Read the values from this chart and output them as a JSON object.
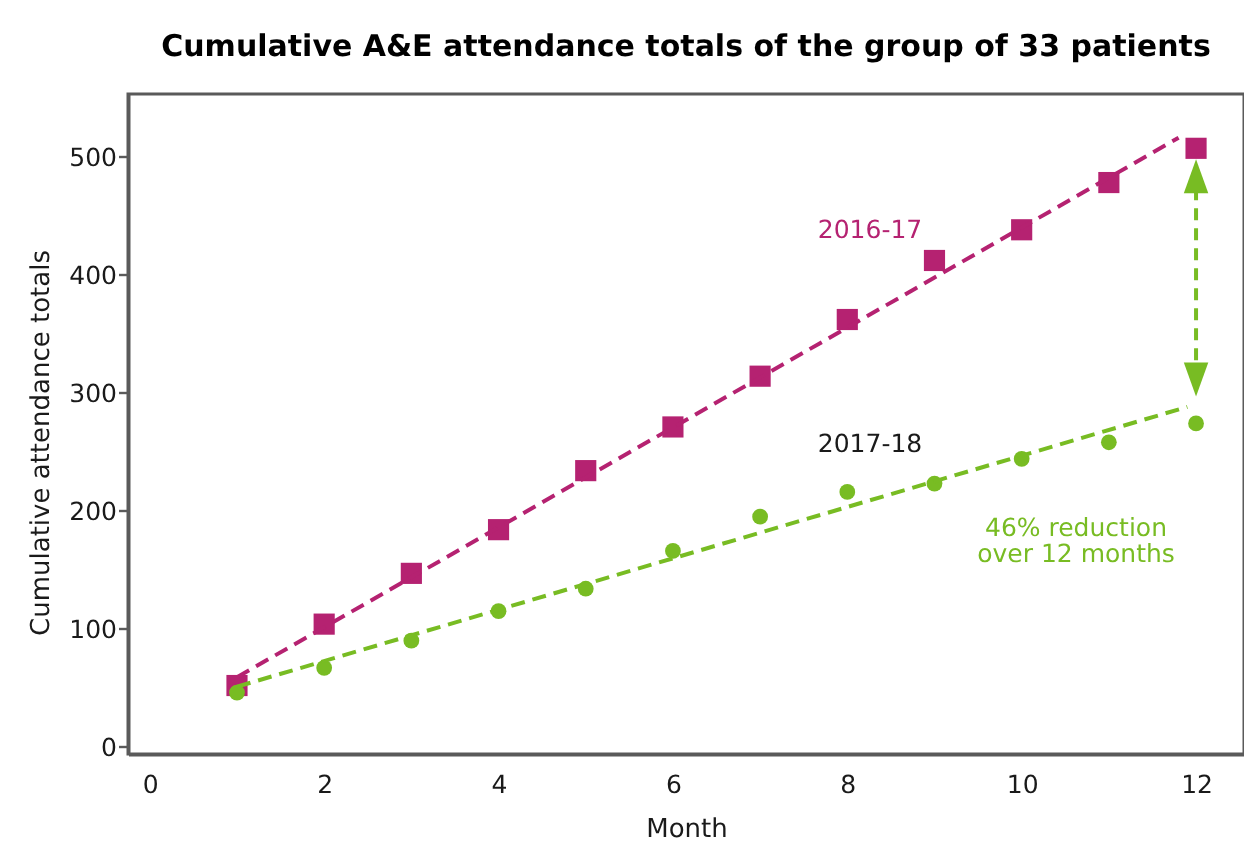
{
  "chart_data": {
    "type": "scatter",
    "title": "Cumulative A&E attendance totals of the group of 33 patients",
    "xlabel": "Month",
    "ylabel": "Cumulative attendance totals",
    "x": [
      1,
      2,
      3,
      4,
      5,
      6,
      7,
      8,
      9,
      10,
      11,
      12
    ],
    "series": [
      {
        "name": "2016-17",
        "marker": "square",
        "color": "#b52271",
        "values": [
          52,
          104,
          147,
          184,
          234,
          271,
          314,
          362,
          412,
          438,
          478,
          507
        ]
      },
      {
        "name": "2017-18",
        "marker": "circle",
        "color": "#78bc23",
        "values": [
          46,
          67,
          90,
          115,
          134,
          166,
          195,
          216,
          223,
          244,
          258,
          274
        ]
      },
      {
        "type": "line",
        "line_style": "dashed",
        "color": "#b52271",
        "x": [
          1,
          11.8
        ],
        "values": [
          59,
          516
        ]
      },
      {
        "type": "line",
        "line_style": "dashed",
        "color": "#78bc23",
        "x": [
          1,
          11.9
        ],
        "values": [
          51,
          288
        ]
      }
    ],
    "xlim": [
      -0.25,
      12.55
    ],
    "xticks": [
      0,
      2,
      4,
      6,
      8,
      10,
      12
    ],
    "ylim": [
      -6,
      553
    ],
    "yticks": [
      0,
      100,
      200,
      300,
      400,
      500
    ],
    "annotations": [
      "46% reduction\nover 12 months"
    ],
    "grid": false,
    "legend": false
  }
}
